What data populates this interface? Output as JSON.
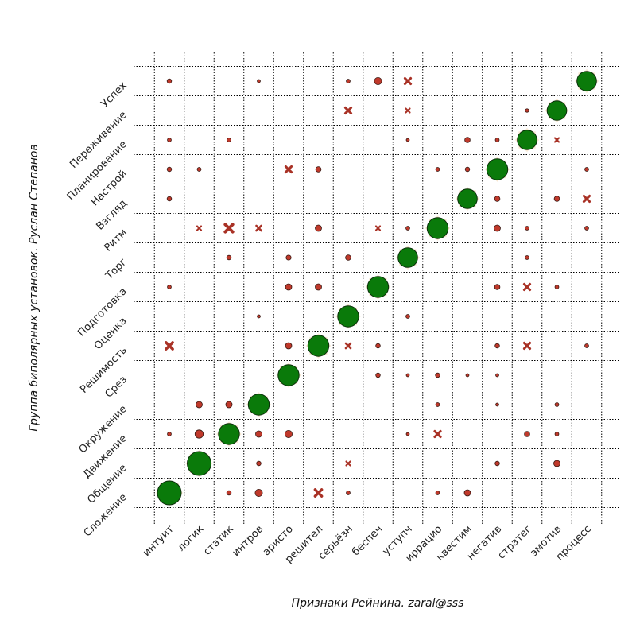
{
  "chart_data": {
    "type": "scatter",
    "xlabel": "Признаки Рейнина. zaral@sss",
    "ylabel": "Группа биполярных установок. Руслан Степанов",
    "x_categories": [
      "интуит",
      "логик",
      "статик",
      "интров",
      "аристо",
      "решител",
      "серьёзн",
      "беспеч",
      "уступч",
      "иррацио",
      "квестим",
      "негатив",
      "стратег",
      "эмотив",
      "процесс"
    ],
    "y_categories": [
      "Сложение",
      "Общение",
      "Движение",
      "Окружение",
      "Срез",
      "Решимость",
      "Оценка",
      "Подготовка",
      "Торг",
      "Ритм",
      "Взгляд",
      "Настрой",
      "Планирование",
      "Переживание",
      "Успех"
    ],
    "grid": true,
    "colors": {
      "diagonal": "#0a7a0a",
      "halo": "#f7e4c9",
      "point": "#c0392b",
      "cross": "#a93226"
    },
    "diagonal": [
      {
        "x": 0,
        "y": 0,
        "size": 10
      },
      {
        "x": 1,
        "y": 1,
        "size": 10
      },
      {
        "x": 2,
        "y": 2,
        "size": 8
      },
      {
        "x": 3,
        "y": 3,
        "size": 8
      },
      {
        "x": 4,
        "y": 4,
        "size": 8
      },
      {
        "x": 5,
        "y": 5,
        "size": 8
      },
      {
        "x": 6,
        "y": 6,
        "size": 8
      },
      {
        "x": 7,
        "y": 7,
        "size": 8
      },
      {
        "x": 8,
        "y": 8,
        "size": 7
      },
      {
        "x": 9,
        "y": 9,
        "size": 8
      },
      {
        "x": 10,
        "y": 10,
        "size": 7
      },
      {
        "x": 11,
        "y": 11,
        "size": 8
      },
      {
        "x": 12,
        "y": 12,
        "size": 7
      },
      {
        "x": 13,
        "y": 13,
        "size": 7
      },
      {
        "x": 14,
        "y": 14,
        "size": 7
      }
    ],
    "points": [
      {
        "x": 0,
        "y": 14,
        "size": 1.5,
        "marker": "circle"
      },
      {
        "x": 3,
        "y": 14,
        "size": 0.8,
        "marker": "circle"
      },
      {
        "x": 6,
        "y": 14,
        "size": 1.2,
        "marker": "circle"
      },
      {
        "x": 7,
        "y": 14,
        "size": 3,
        "marker": "circle"
      },
      {
        "x": 8,
        "y": 14,
        "size": 2.5,
        "marker": "cross"
      },
      {
        "x": 6,
        "y": 13,
        "size": 2.5,
        "marker": "cross"
      },
      {
        "x": 8,
        "y": 13,
        "size": 1.5,
        "marker": "cross"
      },
      {
        "x": 12,
        "y": 13,
        "size": 1,
        "marker": "circle"
      },
      {
        "x": 0,
        "y": 12,
        "size": 1.2,
        "marker": "circle"
      },
      {
        "x": 2,
        "y": 12,
        "size": 1.2,
        "marker": "circle"
      },
      {
        "x": 8,
        "y": 12,
        "size": 0.8,
        "marker": "circle"
      },
      {
        "x": 10,
        "y": 12,
        "size": 2,
        "marker": "circle"
      },
      {
        "x": 11,
        "y": 12,
        "size": 1.2,
        "marker": "circle"
      },
      {
        "x": 13,
        "y": 12,
        "size": 1.5,
        "marker": "cross"
      },
      {
        "x": 0,
        "y": 11,
        "size": 1.5,
        "marker": "circle"
      },
      {
        "x": 1,
        "y": 11,
        "size": 1.2,
        "marker": "circle"
      },
      {
        "x": 4,
        "y": 11,
        "size": 2.5,
        "marker": "cross"
      },
      {
        "x": 5,
        "y": 11,
        "size": 2,
        "marker": "circle"
      },
      {
        "x": 9,
        "y": 11,
        "size": 1.2,
        "marker": "circle"
      },
      {
        "x": 10,
        "y": 11,
        "size": 1.5,
        "marker": "circle"
      },
      {
        "x": 14,
        "y": 11,
        "size": 1.2,
        "marker": "circle"
      },
      {
        "x": 0,
        "y": 10,
        "size": 1.5,
        "marker": "circle"
      },
      {
        "x": 11,
        "y": 10,
        "size": 2,
        "marker": "circle"
      },
      {
        "x": 13,
        "y": 10,
        "size": 2,
        "marker": "circle"
      },
      {
        "x": 14,
        "y": 10,
        "size": 2.5,
        "marker": "cross"
      },
      {
        "x": 1,
        "y": 9,
        "size": 1.5,
        "marker": "cross"
      },
      {
        "x": 2,
        "y": 9,
        "size": 3.5,
        "marker": "cross"
      },
      {
        "x": 3,
        "y": 9,
        "size": 2,
        "marker": "cross"
      },
      {
        "x": 5,
        "y": 9,
        "size": 2.5,
        "marker": "circle"
      },
      {
        "x": 7,
        "y": 9,
        "size": 1.5,
        "marker": "cross"
      },
      {
        "x": 8,
        "y": 9,
        "size": 1.2,
        "marker": "circle"
      },
      {
        "x": 11,
        "y": 9,
        "size": 2.5,
        "marker": "circle"
      },
      {
        "x": 12,
        "y": 9,
        "size": 1.2,
        "marker": "circle"
      },
      {
        "x": 14,
        "y": 9,
        "size": 1.2,
        "marker": "circle"
      },
      {
        "x": 2,
        "y": 8,
        "size": 1.5,
        "marker": "circle"
      },
      {
        "x": 4,
        "y": 8,
        "size": 1.8,
        "marker": "circle"
      },
      {
        "x": 6,
        "y": 8,
        "size": 2,
        "marker": "circle"
      },
      {
        "x": 12,
        "y": 8,
        "size": 1.2,
        "marker": "circle"
      },
      {
        "x": 0,
        "y": 7,
        "size": 1.2,
        "marker": "circle"
      },
      {
        "x": 4,
        "y": 7,
        "size": 2.5,
        "marker": "circle"
      },
      {
        "x": 5,
        "y": 7,
        "size": 2.5,
        "marker": "circle"
      },
      {
        "x": 11,
        "y": 7,
        "size": 2,
        "marker": "circle"
      },
      {
        "x": 12,
        "y": 7,
        "size": 2.5,
        "marker": "cross"
      },
      {
        "x": 13,
        "y": 7,
        "size": 1.2,
        "marker": "circle"
      },
      {
        "x": 3,
        "y": 6,
        "size": 0.8,
        "marker": "circle"
      },
      {
        "x": 8,
        "y": 6,
        "size": 1.2,
        "marker": "circle"
      },
      {
        "x": 0,
        "y": 5,
        "size": 3,
        "marker": "cross"
      },
      {
        "x": 4,
        "y": 5,
        "size": 2.5,
        "marker": "circle"
      },
      {
        "x": 6,
        "y": 5,
        "size": 2,
        "marker": "cross"
      },
      {
        "x": 7,
        "y": 5,
        "size": 1.5,
        "marker": "circle"
      },
      {
        "x": 11,
        "y": 5,
        "size": 1.5,
        "marker": "circle"
      },
      {
        "x": 12,
        "y": 5,
        "size": 2.5,
        "marker": "cross"
      },
      {
        "x": 14,
        "y": 5,
        "size": 1.2,
        "marker": "circle"
      },
      {
        "x": 7,
        "y": 4,
        "size": 1.5,
        "marker": "circle"
      },
      {
        "x": 8,
        "y": 4,
        "size": 0.8,
        "marker": "circle"
      },
      {
        "x": 9,
        "y": 4,
        "size": 1.5,
        "marker": "circle"
      },
      {
        "x": 10,
        "y": 4,
        "size": 0.8,
        "marker": "circle"
      },
      {
        "x": 11,
        "y": 4,
        "size": 0.8,
        "marker": "circle"
      },
      {
        "x": 1,
        "y": 3,
        "size": 2.5,
        "marker": "circle"
      },
      {
        "x": 2,
        "y": 3,
        "size": 2.5,
        "marker": "circle"
      },
      {
        "x": 9,
        "y": 3,
        "size": 1.2,
        "marker": "circle"
      },
      {
        "x": 11,
        "y": 3,
        "size": 0.8,
        "marker": "circle"
      },
      {
        "x": 13,
        "y": 3,
        "size": 1.2,
        "marker": "circle"
      },
      {
        "x": 0,
        "y": 2,
        "size": 1.2,
        "marker": "circle"
      },
      {
        "x": 1,
        "y": 2,
        "size": 3.5,
        "marker": "circle"
      },
      {
        "x": 3,
        "y": 2,
        "size": 2.5,
        "marker": "circle"
      },
      {
        "x": 4,
        "y": 2,
        "size": 3,
        "marker": "circle"
      },
      {
        "x": 8,
        "y": 2,
        "size": 0.8,
        "marker": "circle"
      },
      {
        "x": 9,
        "y": 2,
        "size": 2.5,
        "marker": "cross"
      },
      {
        "x": 12,
        "y": 2,
        "size": 2,
        "marker": "circle"
      },
      {
        "x": 13,
        "y": 2,
        "size": 1.2,
        "marker": "circle"
      },
      {
        "x": 3,
        "y": 1,
        "size": 1.5,
        "marker": "circle"
      },
      {
        "x": 6,
        "y": 1,
        "size": 1.5,
        "marker": "cross"
      },
      {
        "x": 11,
        "y": 1,
        "size": 1.5,
        "marker": "circle"
      },
      {
        "x": 13,
        "y": 1,
        "size": 2.5,
        "marker": "circle"
      },
      {
        "x": 2,
        "y": 0,
        "size": 1.5,
        "marker": "circle"
      },
      {
        "x": 3,
        "y": 0,
        "size": 3,
        "marker": "circle"
      },
      {
        "x": 5,
        "y": 0,
        "size": 3,
        "marker": "cross"
      },
      {
        "x": 6,
        "y": 0,
        "size": 1.2,
        "marker": "circle"
      },
      {
        "x": 9,
        "y": 0,
        "size": 1.2,
        "marker": "circle"
      },
      {
        "x": 10,
        "y": 0,
        "size": 2.5,
        "marker": "circle"
      }
    ]
  }
}
